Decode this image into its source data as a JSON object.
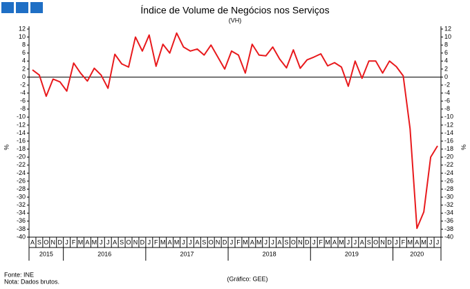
{
  "chart_data": {
    "type": "line",
    "title": "Índice de Volume de Negócios nos Serviços",
    "subtitle": "(VH)",
    "y_label": "%",
    "y2_label": "%",
    "categories": [
      "A",
      "S",
      "O",
      "N",
      "D",
      "J",
      "F",
      "M",
      "A",
      "M",
      "J",
      "J",
      "A",
      "S",
      "O",
      "N",
      "D",
      "J",
      "F",
      "M",
      "A",
      "M",
      "J",
      "J",
      "A",
      "S",
      "O",
      "N",
      "D",
      "J",
      "F",
      "M",
      "A",
      "M",
      "J",
      "J",
      "A",
      "S",
      "O",
      "N",
      "D",
      "J",
      "F",
      "M",
      "A",
      "M",
      "J",
      "J",
      "A",
      "S",
      "O",
      "N",
      "D",
      "J",
      "F",
      "M",
      "A",
      "M",
      "J",
      "J"
    ],
    "years": [
      "2015",
      "2016",
      "2017",
      "2018",
      "2019",
      "2020"
    ],
    "series": [
      {
        "name": "VH",
        "color": "#e8191c",
        "values": [
          1.8,
          0.5,
          -4.8,
          -0.5,
          -1.2,
          -3.5,
          3.5,
          1,
          -1,
          2.2,
          0.5,
          -2.8,
          5.7,
          3.3,
          2.5,
          10,
          6.5,
          10.5,
          2.7,
          8.2,
          6,
          11,
          7.5,
          6.5,
          7,
          5.5,
          8,
          5,
          2,
          6.5,
          5.5,
          1,
          8.2,
          5.5,
          5.3,
          7.5,
          4.5,
          2.3,
          6.8,
          2.2,
          4.3,
          5,
          5.8,
          2.8,
          3.6,
          2.5,
          -2.3,
          4,
          -0.3,
          4,
          4,
          1,
          4,
          2.6,
          0.3,
          -12.9,
          -37.8,
          -33.7,
          -20,
          -17.2
        ]
      }
    ],
    "ylim": [
      -40,
      12
    ],
    "yticks": [
      -40,
      -38,
      -36,
      -34,
      -32,
      -30,
      -28,
      -26,
      -24,
      -22,
      -20,
      -18,
      -16,
      -14,
      -12,
      -10,
      -8,
      -6,
      -4,
      -2,
      0,
      2,
      4,
      6,
      8,
      10,
      12
    ],
    "y2lim": [
      -40,
      12
    ],
    "y2ticks": [
      -40,
      -38,
      -36,
      -34,
      -32,
      -30,
      -28,
      -26,
      -24,
      -22,
      -20,
      -18,
      -16,
      -14,
      -12,
      -10,
      -8,
      -6,
      -4,
      -2,
      0,
      2,
      4,
      6,
      8,
      10,
      12
    ],
    "source": "Fonte: INE",
    "note": "Nota: Dados brutos.",
    "credit": "(Gráfico: GEE)"
  }
}
